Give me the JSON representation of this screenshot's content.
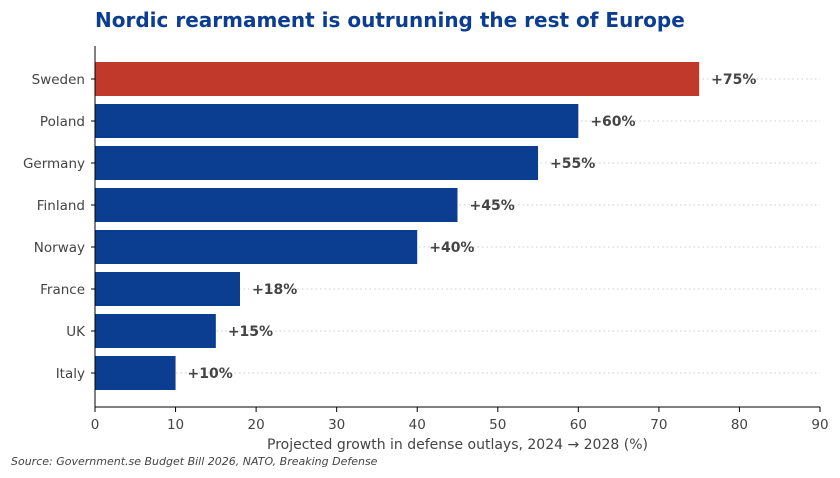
{
  "chart_data": {
    "type": "bar",
    "orientation": "horizontal",
    "title": "Nordic rearmament is outrunning the rest of Europe",
    "xlabel": "Projected growth in defense outlays, 2024 → 2028 (%)",
    "ylabel": "",
    "categories": [
      "Sweden",
      "Poland",
      "Germany",
      "Finland",
      "Norway",
      "France",
      "UK",
      "Italy"
    ],
    "values": [
      75,
      60,
      55,
      45,
      40,
      18,
      15,
      10
    ],
    "data_labels": [
      "+75%",
      "+60%",
      "+55%",
      "+45%",
      "+40%",
      "+18%",
      "+15%",
      "+10%"
    ],
    "highlight_category": "Sweden",
    "xlim": [
      0,
      90
    ],
    "xticks": [
      0,
      10,
      20,
      30,
      40,
      50,
      60,
      70,
      80,
      90
    ],
    "grid": "horizontal dotted",
    "source": "Source: Government.se Budget Bill 2026, NATO, Breaking Defense"
  },
  "colors": {
    "bar": "#0b3d91",
    "highlight": "#c0392b",
    "title": "#0b3d91",
    "text": "#444444",
    "grid": "#cccccc"
  }
}
